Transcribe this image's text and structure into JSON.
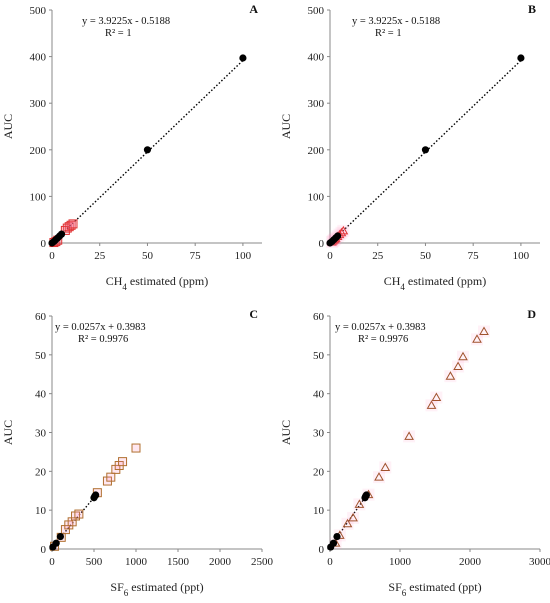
{
  "chart_data": [
    {
      "type": "scatter",
      "letter": "A",
      "equation": "y = 3.9225x - 0.5188",
      "r2": "R² = 1",
      "xlabel": {
        "main": "CH",
        "sub": "4",
        "rest": " estimated (ppm)"
      },
      "ylabel": "AUC",
      "xlim": [
        0,
        110
      ],
      "ylim": [
        0,
        500
      ],
      "xticks": [
        0,
        25,
        50,
        75,
        100
      ],
      "yticks": [
        0,
        100,
        200,
        300,
        400,
        500
      ],
      "trend": {
        "slope": 3.9225,
        "intercept": -0.5188,
        "x": [
          0,
          100
        ]
      },
      "series": [
        {
          "marker": "circle",
          "color": "#000000",
          "points": [
            [
              0,
              0
            ],
            [
              1,
              3
            ],
            [
              2,
              7
            ],
            [
              3,
              11
            ],
            [
              4,
              15
            ],
            [
              5,
              19
            ],
            [
              50,
              200
            ],
            [
              100,
              397
            ]
          ]
        },
        {
          "marker": "square-red",
          "color": "#e03030",
          "points": [
            [
              1,
              1
            ],
            [
              2,
              3
            ],
            [
              3,
              6
            ],
            [
              7,
              27
            ],
            [
              8,
              32
            ],
            [
              9,
              35
            ],
            [
              10,
              38
            ],
            [
              11,
              41
            ]
          ]
        }
      ]
    },
    {
      "type": "scatter",
      "letter": "B",
      "equation": "y = 3.9225x - 0.5188",
      "r2": "R² = 1",
      "xlabel": {
        "main": "CH",
        "sub": "4",
        "rest": " estimated (ppm)"
      },
      "ylabel": "AUC",
      "xlim": [
        0,
        110
      ],
      "ylim": [
        0,
        500
      ],
      "xticks": [
        0,
        25,
        50,
        75,
        100
      ],
      "yticks": [
        0,
        100,
        200,
        300,
        400,
        500
      ],
      "trend": {
        "slope": 3.9225,
        "intercept": -0.5188,
        "x": [
          0,
          100
        ]
      },
      "series": [
        {
          "marker": "circle",
          "color": "#000000",
          "points": [
            [
              0,
              0
            ],
            [
              1,
              3
            ],
            [
              2,
              7
            ],
            [
              3,
              11
            ],
            [
              4,
              15
            ],
            [
              50,
              200
            ],
            [
              100,
              397
            ]
          ]
        },
        {
          "marker": "triangle-red",
          "color": "#e03030",
          "points": [
            [
              1,
              2
            ],
            [
              1.5,
              4
            ],
            [
              2,
              6
            ],
            [
              2.5,
              8
            ],
            [
              3,
              10
            ],
            [
              4,
              14
            ],
            [
              5,
              18
            ],
            [
              6,
              22
            ],
            [
              7,
              26
            ]
          ]
        }
      ]
    },
    {
      "type": "scatter",
      "letter": "C",
      "equation": "y = 0.0257x + 0.3983",
      "r2": "R² = 0.9976",
      "xlabel": {
        "main": "SF",
        "sub": "6",
        "rest": " estimated (ppt)"
      },
      "ylabel": "AUC",
      "xlim": [
        0,
        2500
      ],
      "ylim": [
        0,
        60
      ],
      "xticks": [
        0,
        500,
        1000,
        1500,
        2000,
        2500
      ],
      "yticks": [
        0,
        10,
        20,
        30,
        40,
        50,
        60
      ],
      "trend": {
        "slope": 0.0257,
        "intercept": 0.3983,
        "x": [
          0,
          520
        ]
      },
      "series": [
        {
          "marker": "circle",
          "color": "#000000",
          "points": [
            [
              10,
              0.5
            ],
            [
              50,
              1.5
            ],
            [
              100,
              3.2
            ],
            [
              500,
              13.2
            ],
            [
              510,
              13.6
            ],
            [
              520,
              13.9
            ]
          ]
        },
        {
          "marker": "square-brown",
          "color": "#b07030",
          "points": [
            [
              30,
              0.7
            ],
            [
              110,
              3
            ],
            [
              160,
              5
            ],
            [
              200,
              6.2
            ],
            [
              240,
              7
            ],
            [
              280,
              8.5
            ],
            [
              320,
              9
            ],
            [
              540,
              14.5
            ],
            [
              660,
              17.5
            ],
            [
              700,
              18.5
            ],
            [
              760,
              20.5
            ],
            [
              800,
              21.5
            ],
            [
              840,
              22.5
            ],
            [
              1000,
              26
            ]
          ]
        }
      ]
    },
    {
      "type": "scatter",
      "letter": "D",
      "equation": "y = 0.0257x + 0.3983",
      "r2": "R² = 0.9976",
      "xlabel": {
        "main": "SF",
        "sub": "6",
        "rest": " estimated (ppt)"
      },
      "ylabel": "AUC",
      "xlim": [
        0,
        3000
      ],
      "ylim": [
        0,
        60
      ],
      "xticks": [
        0,
        1000,
        2000,
        3000
      ],
      "yticks": [
        0,
        10,
        20,
        30,
        40,
        50,
        60
      ],
      "trend": {
        "slope": 0.0257,
        "intercept": 0.3983,
        "x": [
          0,
          520
        ]
      },
      "series": [
        {
          "marker": "circle",
          "color": "#000000",
          "points": [
            [
              10,
              0.5
            ],
            [
              50,
              1.5
            ],
            [
              100,
              3.2
            ],
            [
              500,
              13.2
            ],
            [
              510,
              13.6
            ],
            [
              520,
              13.9
            ]
          ]
        },
        {
          "marker": "triangle-brown",
          "color": "#a0522d",
          "points": [
            [
              80,
              1.5
            ],
            [
              140,
              3.5
            ],
            [
              250,
              6.5
            ],
            [
              330,
              8
            ],
            [
              420,
              11.5
            ],
            [
              550,
              14
            ],
            [
              700,
              18.5
            ],
            [
              790,
              21
            ],
            [
              1130,
              29
            ],
            [
              1450,
              37
            ],
            [
              1520,
              39
            ],
            [
              1720,
              44.5
            ],
            [
              1830,
              47
            ],
            [
              1900,
              49.5
            ],
            [
              2100,
              54
            ],
            [
              2200,
              56
            ]
          ]
        }
      ]
    }
  ]
}
